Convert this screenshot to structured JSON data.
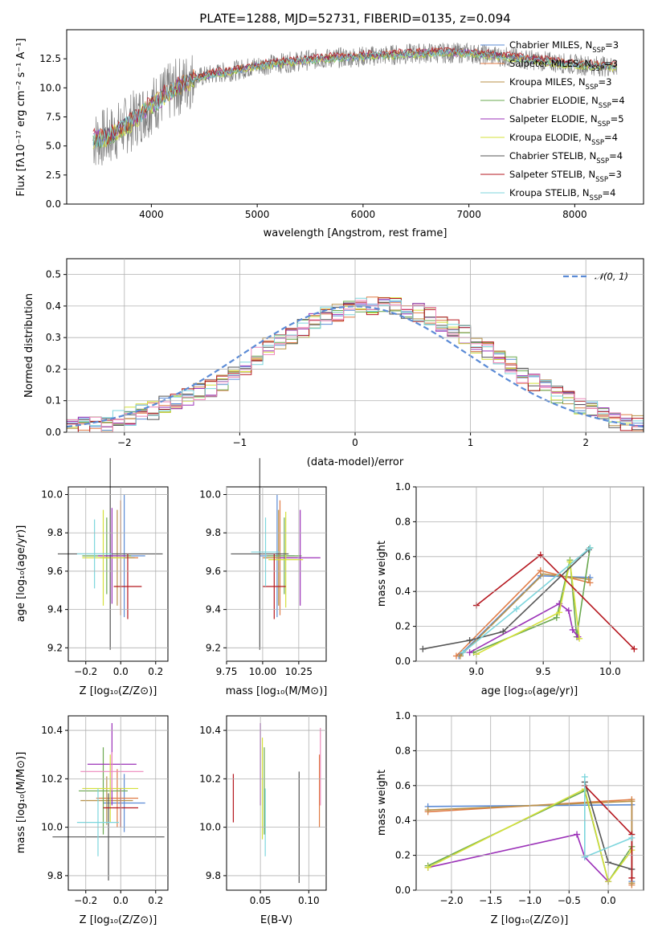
{
  "chart_data": [
    {
      "type": "line",
      "panel": "spectrum",
      "title": "PLATE=1288, MJD=52731, FIBERID=0135, z=0.094",
      "xlabel": "wavelength [Angstrom, rest frame]",
      "ylabel": "Flux [fλ10⁻¹⁷ erg cm⁻² s⁻¹ A⁻¹]",
      "xlim": [
        3200,
        8650
      ],
      "ylim": [
        0,
        15
      ],
      "xticks": [
        "4000",
        "5000",
        "6000",
        "7000",
        "8000"
      ],
      "yticks": [
        "0.0",
        "2.5",
        "5.0",
        "7.5",
        "10.0",
        "12.5"
      ],
      "grid": false,
      "legend_position": "right",
      "x": [
        3450,
        3600,
        3800,
        4000,
        4200,
        4400,
        4600,
        4800,
        5000,
        5200,
        5400,
        5600,
        5800,
        6000,
        6200,
        6400,
        6600,
        6800,
        7000,
        7200,
        7400,
        7600,
        7800,
        8000,
        8200,
        8400
      ],
      "series": [
        {
          "name": "Chabrier MILES, N_SSP=3",
          "color": "#5b8bd6",
          "values": [
            5.5,
            5.8,
            7.0,
            8.5,
            9.8,
            10.8,
            11.2,
            11.5,
            11.9,
            12.1,
            12.3,
            12.5,
            12.6,
            12.7,
            12.8,
            12.9,
            13.0,
            13.0,
            13.0,
            12.8,
            12.6,
            12.4,
            12.2,
            12.0,
            11.9,
            11.8
          ]
        },
        {
          "name": "Salpeter MILES, N_SSP=3",
          "color": "#e07b45",
          "values": [
            5.6,
            5.9,
            7.1,
            8.6,
            9.9,
            10.9,
            11.3,
            11.6,
            12.0,
            12.2,
            12.4,
            12.6,
            12.7,
            12.8,
            12.9,
            13.0,
            13.1,
            13.1,
            13.1,
            12.9,
            12.7,
            12.5,
            12.3,
            12.1,
            12.0,
            11.9
          ]
        },
        {
          "name": "Kroupa MILES, N_SSP=3",
          "color": "#b8924a",
          "values": [
            5.5,
            5.8,
            7.0,
            8.5,
            9.8,
            10.8,
            11.2,
            11.5,
            11.9,
            12.1,
            12.3,
            12.5,
            12.6,
            12.7,
            12.8,
            12.9,
            13.0,
            13.0,
            13.0,
            12.8,
            12.6,
            12.4,
            12.2,
            12.0,
            11.9,
            11.8
          ]
        },
        {
          "name": "Chabrier ELODIE, N_SSP=4",
          "color": "#6aa84f",
          "values": [
            5.4,
            5.7,
            6.9,
            8.4,
            9.7,
            10.7,
            11.1,
            11.4,
            11.8,
            12.0,
            12.2,
            12.4,
            12.5,
            12.6,
            12.7,
            12.8,
            12.9,
            12.9,
            12.9,
            12.7,
            12.5,
            12.3,
            12.1,
            11.9,
            11.8,
            11.7
          ]
        },
        {
          "name": "Salpeter ELODIE, N_SSP=5",
          "color": "#9b30b8",
          "values": [
            5.5,
            5.8,
            7.0,
            8.5,
            9.8,
            10.8,
            11.2,
            11.5,
            11.9,
            12.1,
            12.3,
            12.5,
            12.6,
            12.7,
            12.8,
            12.9,
            13.0,
            13.0,
            13.0,
            12.8,
            12.6,
            12.4,
            12.2,
            12.0,
            11.9,
            11.8
          ]
        },
        {
          "name": "Kroupa ELODIE, N_SSP=4",
          "color": "#d4e03a",
          "values": [
            5.4,
            5.7,
            6.9,
            8.4,
            9.7,
            10.7,
            11.1,
            11.4,
            11.8,
            12.0,
            12.2,
            12.4,
            12.5,
            12.6,
            12.7,
            12.8,
            12.9,
            12.9,
            12.9,
            12.7,
            12.5,
            12.3,
            12.1,
            11.9,
            11.8,
            11.7
          ]
        },
        {
          "name": "Chabrier STELIB, N_SSP=4",
          "color": "#555555",
          "values": [
            5.6,
            5.9,
            7.1,
            8.6,
            9.9,
            10.9,
            11.3,
            11.6,
            12.0,
            12.2,
            12.4,
            12.6,
            12.7,
            12.8,
            12.9,
            13.0,
            13.1,
            13.1,
            13.1,
            12.9,
            12.7,
            12.5,
            12.3,
            12.1,
            12.0,
            11.9
          ]
        },
        {
          "name": "Salpeter STELIB, N_SSP=3",
          "color": "#b5171f",
          "values": [
            5.7,
            6.0,
            7.2,
            8.7,
            10.0,
            11.0,
            11.4,
            11.7,
            12.1,
            12.3,
            12.5,
            12.7,
            12.8,
            12.9,
            13.0,
            13.1,
            13.2,
            13.2,
            13.2,
            13.0,
            12.8,
            12.6,
            12.4,
            12.2,
            12.1,
            12.0
          ]
        },
        {
          "name": "Kroupa STELIB, N_SSP=4",
          "color": "#7dd6dd",
          "values": [
            5.5,
            5.8,
            7.0,
            8.5,
            9.8,
            10.8,
            11.2,
            11.5,
            11.9,
            12.1,
            12.3,
            12.5,
            12.6,
            12.7,
            12.8,
            12.9,
            13.0,
            13.0,
            13.0,
            12.8,
            12.6,
            12.4,
            12.2,
            12.0,
            11.9,
            11.8
          ]
        }
      ],
      "observed_spectrum_color": "#808080"
    },
    {
      "type": "line",
      "panel": "residual-histogram",
      "xlabel": "(data-model)/error",
      "ylabel": "Normed distribution",
      "xlim": [
        -2.5,
        2.5
      ],
      "ylim": [
        0,
        0.55
      ],
      "xticks": [
        "−2",
        "−1",
        "0",
        "1",
        "2"
      ],
      "yticks": [
        "0.0",
        "0.1",
        "0.2",
        "0.3",
        "0.4",
        "0.5"
      ],
      "grid": true,
      "legend": "𝒩(0, 1)",
      "legend_position": "top-right",
      "bin_width": 0.1,
      "x_start": -2.5,
      "hist_values": [
        0.02,
        0.02,
        0.03,
        0.03,
        0.04,
        0.05,
        0.06,
        0.07,
        0.09,
        0.1,
        0.11,
        0.13,
        0.14,
        0.16,
        0.18,
        0.21,
        0.24,
        0.27,
        0.29,
        0.31,
        0.33,
        0.35,
        0.37,
        0.38,
        0.39,
        0.4,
        0.4,
        0.41,
        0.4,
        0.39,
        0.38,
        0.37,
        0.35,
        0.33,
        0.31,
        0.28,
        0.26,
        0.24,
        0.21,
        0.18,
        0.16,
        0.14,
        0.12,
        0.1,
        0.08,
        0.07,
        0.05,
        0.04,
        0.03,
        0.03
      ],
      "gaussian_color": "#5b8bd6"
    },
    {
      "type": "scatter",
      "panel": "age-vs-Z",
      "xlabel": "Z [log₁₀(Z/Z⊙)]",
      "ylabel": "age  [log₁₀(age/yr)]",
      "xlim": [
        -0.3,
        0.27
      ],
      "ylim": [
        9.13,
        10.04
      ],
      "xticks": [
        "−0.2",
        "0.0",
        "0.2"
      ],
      "yticks": [
        "9.2",
        "9.4",
        "9.6",
        "9.8",
        "10.0"
      ],
      "points": [
        {
          "color": "#5b8bd6",
          "x": 0.02,
          "xerr": 0.12,
          "y": 9.68,
          "yerr": 0.32
        },
        {
          "color": "#e07b45",
          "x": 0.0,
          "xerr": 0.1,
          "y": 9.67,
          "yerr": 0.3
        },
        {
          "color": "#b8924a",
          "x": -0.02,
          "xerr": 0.1,
          "y": 9.67,
          "yerr": 0.25
        },
        {
          "color": "#6aa84f",
          "x": -0.08,
          "xerr": 0.14,
          "y": 9.68,
          "yerr": 0.2
        },
        {
          "color": "#9b30b8",
          "x": -0.05,
          "xerr": 0.08,
          "y": 9.68,
          "yerr": 0.25
        },
        {
          "color": "#d4e03a",
          "x": -0.1,
          "xerr": 0.12,
          "y": 9.67,
          "yerr": 0.25
        },
        {
          "color": "#555555",
          "x": -0.06,
          "xerr": 0.3,
          "y": 9.69,
          "yerr": 0.5
        },
        {
          "color": "#b5171f",
          "x": 0.04,
          "xerr": 0.08,
          "y": 9.52,
          "yerr": 0.17
        },
        {
          "color": "#7dd6dd",
          "x": -0.15,
          "xerr": 0.1,
          "y": 9.69,
          "yerr": 0.18
        }
      ]
    },
    {
      "type": "scatter",
      "panel": "age-vs-mass",
      "xlabel": "mass [log₁₀(M/M⊙)]",
      "xlim": [
        9.75,
        10.44
      ],
      "ylim": [
        9.13,
        10.04
      ],
      "xticks": [
        "9.75",
        "10.00",
        "10.25"
      ],
      "yticks": [
        "9.2",
        "9.4",
        "9.6",
        "9.8",
        "10.0"
      ],
      "points": [
        {
          "color": "#5b8bd6",
          "x": 10.1,
          "xerr": 0.12,
          "y": 9.68,
          "yerr": 0.32
        },
        {
          "color": "#e07b45",
          "x": 10.12,
          "xerr": 0.12,
          "y": 9.67,
          "yerr": 0.3
        },
        {
          "color": "#b8924a",
          "x": 10.11,
          "xerr": 0.1,
          "y": 9.67,
          "yerr": 0.25
        },
        {
          "color": "#6aa84f",
          "x": 10.15,
          "xerr": 0.12,
          "y": 9.68,
          "yerr": 0.2
        },
        {
          "color": "#9b30b8",
          "x": 10.26,
          "xerr": 0.14,
          "y": 9.67,
          "yerr": 0.25
        },
        {
          "color": "#d4e03a",
          "x": 10.16,
          "xerr": 0.12,
          "y": 9.66,
          "yerr": 0.25
        },
        {
          "color": "#555555",
          "x": 9.98,
          "xerr": 0.2,
          "y": 9.69,
          "yerr": 0.5
        },
        {
          "color": "#b5171f",
          "x": 10.08,
          "xerr": 0.08,
          "y": 9.52,
          "yerr": 0.17
        },
        {
          "color": "#7dd6dd",
          "x": 10.02,
          "xerr": 0.1,
          "y": 9.7,
          "yerr": 0.18
        }
      ]
    },
    {
      "type": "line",
      "panel": "mass-weight-vs-age",
      "xlabel": "age  [log₁₀(age/yr)]",
      "ylabel": "mass weight",
      "xlim": [
        8.55,
        10.25
      ],
      "ylim": [
        0,
        1.0
      ],
      "xticks": [
        "9.0",
        "9.5",
        "10.0"
      ],
      "yticks": [
        "0.0",
        "0.2",
        "0.4",
        "0.6",
        "0.8",
        "1.0"
      ],
      "grid": true,
      "series": [
        {
          "color": "#5b8bd6",
          "x": [
            8.87,
            9.48,
            9.85
          ],
          "y": [
            0.03,
            0.49,
            0.48
          ]
        },
        {
          "color": "#e07b45",
          "x": [
            8.85,
            9.48,
            9.85
          ],
          "y": [
            0.03,
            0.52,
            0.45
          ]
        },
        {
          "color": "#b8924a",
          "x": [
            8.88,
            9.5,
            9.84
          ],
          "y": [
            0.03,
            0.5,
            0.47
          ]
        },
        {
          "color": "#6aa84f",
          "x": [
            8.98,
            9.6,
            9.7,
            9.75,
            9.85
          ],
          "y": [
            0.05,
            0.25,
            0.58,
            0.14,
            0.65
          ]
        },
        {
          "color": "#9b30b8",
          "x": [
            8.95,
            9.62,
            9.69,
            9.72,
            9.76
          ],
          "y": [
            0.05,
            0.33,
            0.29,
            0.18,
            0.14
          ]
        },
        {
          "color": "#d4e03a",
          "x": [
            9.0,
            9.62,
            9.7,
            9.77
          ],
          "y": [
            0.04,
            0.28,
            0.57,
            0.13
          ]
        },
        {
          "color": "#555555",
          "x": [
            8.6,
            8.95,
            9.2,
            9.84
          ],
          "y": [
            0.07,
            0.12,
            0.17,
            0.64
          ]
        },
        {
          "color": "#b5171f",
          "x": [
            9.0,
            9.48,
            10.18
          ],
          "y": [
            0.32,
            0.61,
            0.07
          ]
        },
        {
          "color": "#7dd6dd",
          "x": [
            8.9,
            9.3,
            9.85
          ],
          "y": [
            0.05,
            0.3,
            0.65
          ]
        }
      ]
    },
    {
      "type": "scatter",
      "panel": "mass-vs-Z",
      "xlabel": "Z [log₁₀(Z/Z⊙)]",
      "ylabel": "mass [log₁₀(M/M⊙)]",
      "xlim": [
        -0.3,
        0.27
      ],
      "ylim": [
        9.74,
        10.46
      ],
      "xticks": [
        "−0.2",
        "0.0",
        "0.2"
      ],
      "yticks": [
        "9.8",
        "10.0",
        "10.2",
        "10.4"
      ],
      "points": [
        {
          "color": "#5b8bd6",
          "x": 0.02,
          "xerr": 0.12,
          "y": 10.1,
          "yerr": 0.12
        },
        {
          "color": "#e07b45",
          "x": -0.02,
          "xerr": 0.12,
          "y": 10.12,
          "yerr": 0.12
        },
        {
          "color": "#b8924a",
          "x": -0.08,
          "xerr": 0.15,
          "y": 10.11,
          "yerr": 0.1
        },
        {
          "color": "#6aa84f",
          "x": -0.1,
          "xerr": 0.14,
          "y": 10.15,
          "yerr": 0.18
        },
        {
          "color": "#9b30b8",
          "x": -0.05,
          "xerr": 0.14,
          "y": 10.26,
          "yerr": 0.17
        },
        {
          "color": "#d4e03a",
          "x": -0.06,
          "xerr": 0.16,
          "y": 10.16,
          "yerr": 0.14
        },
        {
          "color": "#555555",
          "x": -0.07,
          "xerr": 0.32,
          "y": 9.96,
          "yerr": 0.18
        },
        {
          "color": "#b5171f",
          "x": 0.0,
          "xerr": 0.1,
          "y": 10.08,
          "yerr": 0.08
        },
        {
          "color": "#7dd6dd",
          "x": -0.13,
          "xerr": 0.12,
          "y": 10.02,
          "yerr": 0.14
        },
        {
          "color": "#ee88bb",
          "x": -0.05,
          "xerr": 0.18,
          "y": 10.23,
          "yerr": 0.08
        }
      ]
    },
    {
      "type": "scatter",
      "panel": "mass-vs-EBV",
      "xlabel": "E(B-V)",
      "xlim": [
        0.015,
        0.118
      ],
      "ylim": [
        9.74,
        10.46
      ],
      "xticks": [
        "0.05",
        "0.10"
      ],
      "yticks": [
        "9.8",
        "10.0",
        "10.2",
        "10.4"
      ],
      "points": [
        {
          "color": "#b5171f",
          "x": 0.022,
          "y": 10.12,
          "yerr": 0.1
        },
        {
          "color": "#9b30b8",
          "x": 0.05,
          "y": 10.26,
          "yerr": 0.17
        },
        {
          "color": "#d4e03a",
          "x": 0.052,
          "y": 10.16,
          "yerr": 0.21
        },
        {
          "color": "#6aa84f",
          "x": 0.054,
          "y": 10.15,
          "yerr": 0.18
        },
        {
          "color": "#7dd6dd",
          "x": 0.055,
          "y": 10.02,
          "yerr": 0.14
        },
        {
          "color": "#555555",
          "x": 0.09,
          "y": 10.0,
          "yerr": 0.23
        },
        {
          "color": "#e07b45",
          "x": 0.111,
          "y": 10.15,
          "yerr": 0.15
        },
        {
          "color": "#ee88bb",
          "x": 0.112,
          "y": 10.25,
          "yerr": 0.16
        }
      ]
    },
    {
      "type": "line",
      "panel": "mass-weight-vs-Z",
      "xlabel": "Z [log₁₀(Z/Z⊙)]",
      "ylabel": "mass weight",
      "xlim": [
        -2.45,
        0.45
      ],
      "ylim": [
        0,
        1.0
      ],
      "xticks": [
        "−2.0",
        "−1.5",
        "−1.0",
        "−0.5",
        "0.0"
      ],
      "yticks": [
        "0.0",
        "0.2",
        "0.4",
        "0.6",
        "0.8",
        "1.0"
      ],
      "grid": true,
      "series": [
        {
          "color": "#5b8bd6",
          "x": [
            -2.3,
            0.3,
            0.3
          ],
          "y": [
            0.48,
            0.49,
            0.05
          ]
        },
        {
          "color": "#e07b45",
          "x": [
            -2.3,
            0.3,
            0.3
          ],
          "y": [
            0.45,
            0.52,
            0.03
          ]
        },
        {
          "color": "#b8924a",
          "x": [
            -2.3,
            0.3,
            0.3
          ],
          "y": [
            0.46,
            0.51,
            0.04
          ]
        },
        {
          "color": "#6aa84f",
          "x": [
            -2.3,
            -0.3,
            0.0,
            0.3
          ],
          "y": [
            0.14,
            0.57,
            0.05,
            0.25
          ]
        },
        {
          "color": "#9b30b8",
          "x": [
            -2.3,
            -0.4,
            -0.3,
            0.0
          ],
          "y": [
            0.13,
            0.32,
            0.19,
            0.05
          ]
        },
        {
          "color": "#d4e03a",
          "x": [
            -2.3,
            -0.3,
            0.0,
            0.3
          ],
          "y": [
            0.13,
            0.58,
            0.05,
            0.23
          ]
        },
        {
          "color": "#555555",
          "x": [
            -0.3,
            0.0,
            0.3
          ],
          "y": [
            0.62,
            0.16,
            0.12
          ]
        },
        {
          "color": "#b5171f",
          "x": [
            -0.3,
            0.3,
            0.3
          ],
          "y": [
            0.6,
            0.32,
            0.07
          ]
        },
        {
          "color": "#7dd6dd",
          "x": [
            -0.3,
            -0.3,
            0.3
          ],
          "y": [
            0.65,
            0.19,
            0.3
          ]
        }
      ]
    }
  ]
}
